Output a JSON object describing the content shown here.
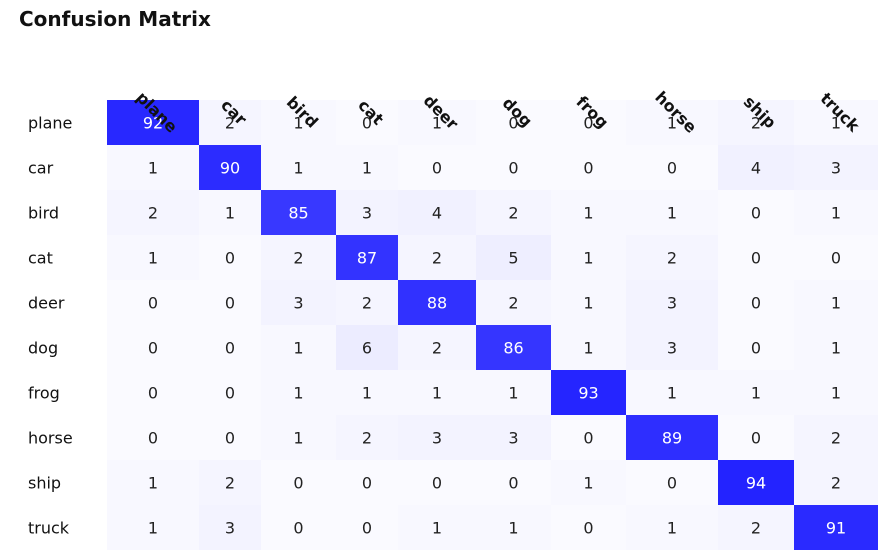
{
  "chart_data": {
    "type": "heatmap",
    "title": "Confusion Matrix",
    "row_labels": [
      "plane",
      "car",
      "bird",
      "cat",
      "deer",
      "dog",
      "frog",
      "horse",
      "ship",
      "truck"
    ],
    "col_labels": [
      "plane",
      "car",
      "bird",
      "cat",
      "deer",
      "dog",
      "frog",
      "horse",
      "ship",
      "truck"
    ],
    "values": [
      [
        92,
        2,
        1,
        0,
        1,
        0,
        0,
        1,
        2,
        1
      ],
      [
        1,
        90,
        1,
        1,
        0,
        0,
        0,
        0,
        4,
        3
      ],
      [
        2,
        1,
        85,
        3,
        4,
        2,
        1,
        1,
        0,
        1
      ],
      [
        1,
        0,
        2,
        87,
        2,
        5,
        1,
        2,
        0,
        0
      ],
      [
        0,
        0,
        3,
        2,
        88,
        2,
        1,
        3,
        0,
        1
      ],
      [
        0,
        0,
        1,
        6,
        2,
        86,
        1,
        3,
        0,
        1
      ],
      [
        0,
        0,
        1,
        1,
        1,
        1,
        93,
        1,
        1,
        1
      ],
      [
        0,
        0,
        1,
        2,
        3,
        3,
        0,
        89,
        0,
        2
      ],
      [
        1,
        2,
        0,
        0,
        0,
        0,
        1,
        0,
        94,
        2
      ],
      [
        1,
        3,
        0,
        0,
        1,
        1,
        0,
        1,
        2,
        91
      ]
    ],
    "color_low": "#ffffff",
    "color_high": "#0000ff",
    "xlabel": "",
    "ylabel": ""
  }
}
